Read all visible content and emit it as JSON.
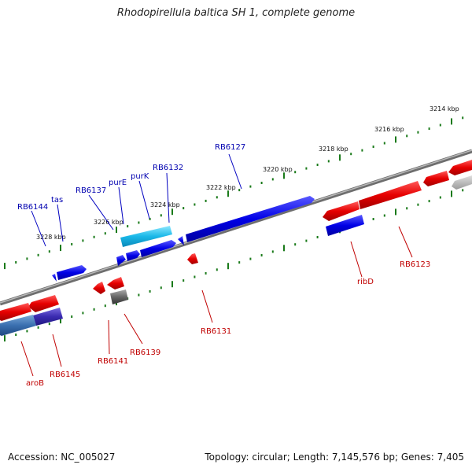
{
  "title": "Rhodopirellula baltica SH 1, complete genome",
  "accession": "Accession: NC_005027",
  "topology": "Topology: circular; Length: 7,145,576 bp; Genes: 7,405",
  "colors": {
    "forward_gene": "#0000e6",
    "reverse_gene": "#e60000",
    "highlight_gene": "#1ab8e8",
    "purple_gene": "#3a2ab0",
    "gray_gene": "#666666",
    "backbone": "#888888",
    "tick": "#1a7a1a"
  },
  "kbp_ticks": [
    "3214 kbp",
    "3216 kbp",
    "3218 kbp",
    "3220 kbp",
    "3222 kbp",
    "3224 kbp",
    "3226 kbp",
    "3228 kbp"
  ],
  "forward_gene_labels": [
    "RB6127",
    "RB6132",
    "purK",
    "purE",
    "RB6137",
    "tas",
    "RB6144"
  ],
  "reverse_gene_labels": [
    "RB6123",
    "ribD",
    "RB6131",
    "RB6139",
    "RB6141",
    "RB6145",
    "aroB"
  ]
}
